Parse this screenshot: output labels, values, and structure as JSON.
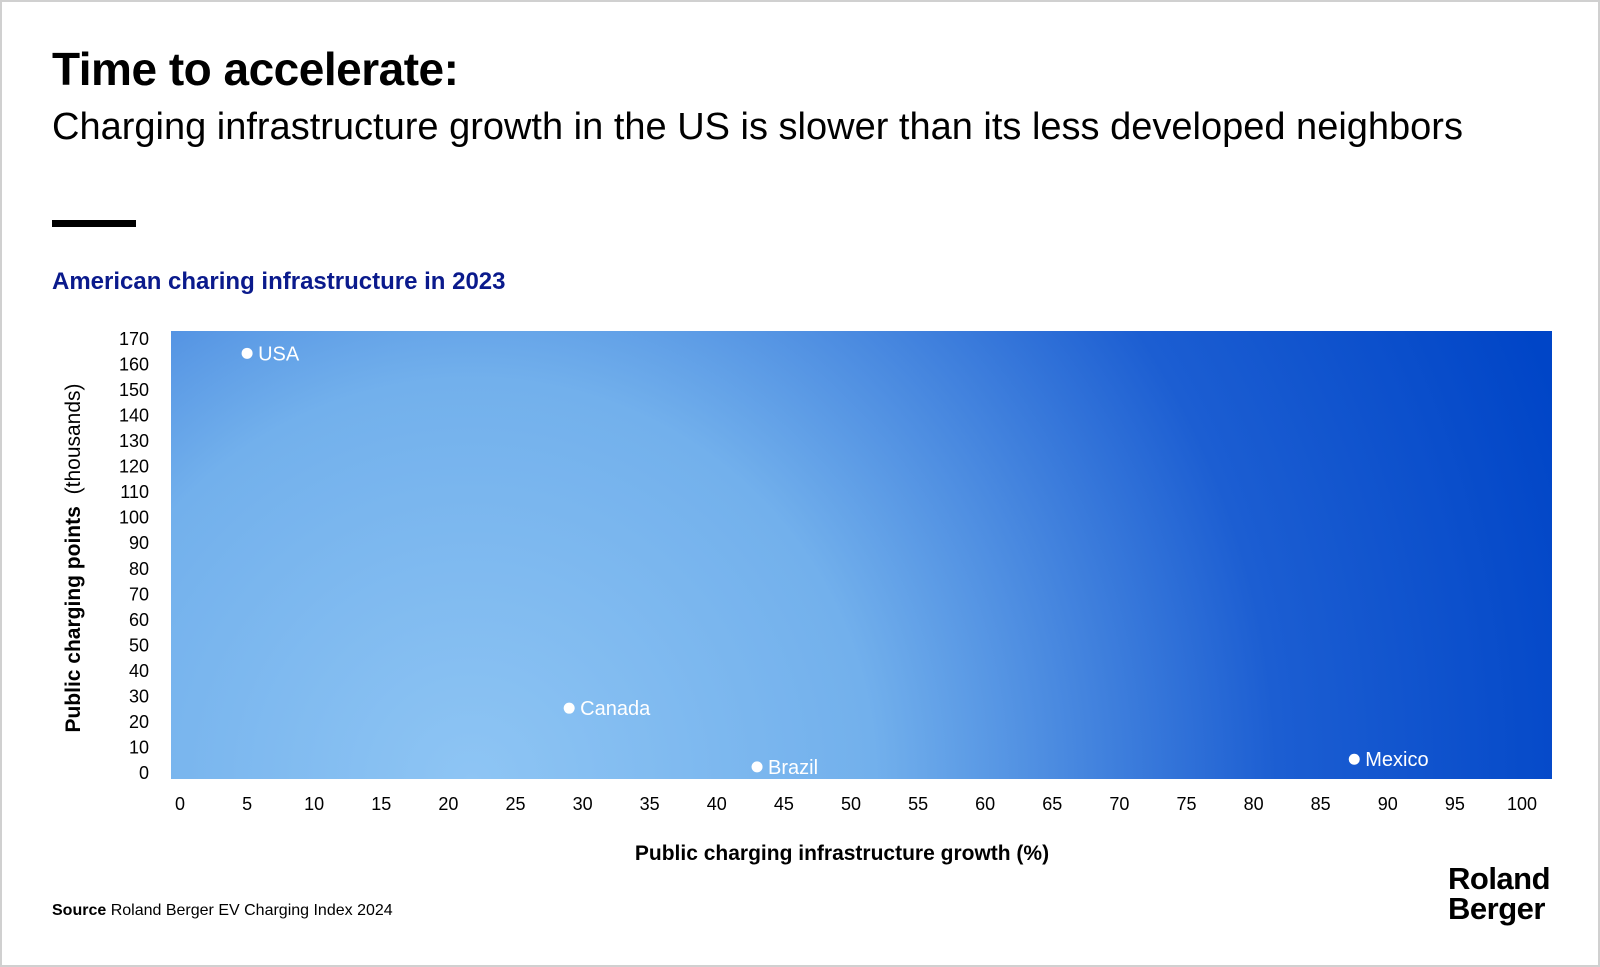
{
  "header": {
    "title": "Time to accelerate:",
    "subtitle": "Charging infrastructure growth in the US is slower than its less developed neighbors"
  },
  "chart_title": "American charing infrastructure in 2023",
  "colors": {
    "title_accent": "#0a1a8c",
    "plot_gradient_dark": "#0045c7",
    "plot_gradient_light": "#8ec5f4",
    "point": "#ffffff"
  },
  "chart_data": {
    "type": "scatter",
    "title": "American charing infrastructure in 2023",
    "xlabel": "Public charging infrastructure growth (%)",
    "ylabel_bold": "Public charging points",
    "ylabel_unit": "(thousands)",
    "xlim": [
      0,
      100
    ],
    "ylim": [
      0,
      170
    ],
    "x_ticks": [
      0,
      5,
      10,
      15,
      20,
      25,
      30,
      35,
      40,
      45,
      50,
      55,
      60,
      65,
      70,
      75,
      80,
      85,
      90,
      95,
      100
    ],
    "y_ticks": [
      0,
      10,
      20,
      30,
      40,
      50,
      60,
      70,
      80,
      90,
      100,
      110,
      120,
      130,
      140,
      150,
      160,
      170
    ],
    "grid": false,
    "legend": "none",
    "points": [
      {
        "label": "USA",
        "x": 5,
        "y": 164
      },
      {
        "label": "Canada",
        "x": 29,
        "y": 25
      },
      {
        "label": "Brazil",
        "x": 43,
        "y": 2
      },
      {
        "label": "Mexico",
        "x": 87.5,
        "y": 5
      }
    ]
  },
  "footer": {
    "source_label": "Source",
    "source_text": "Roland Berger EV Charging Index 2024",
    "logo_line1": "Roland",
    "logo_line2": "Berger"
  }
}
